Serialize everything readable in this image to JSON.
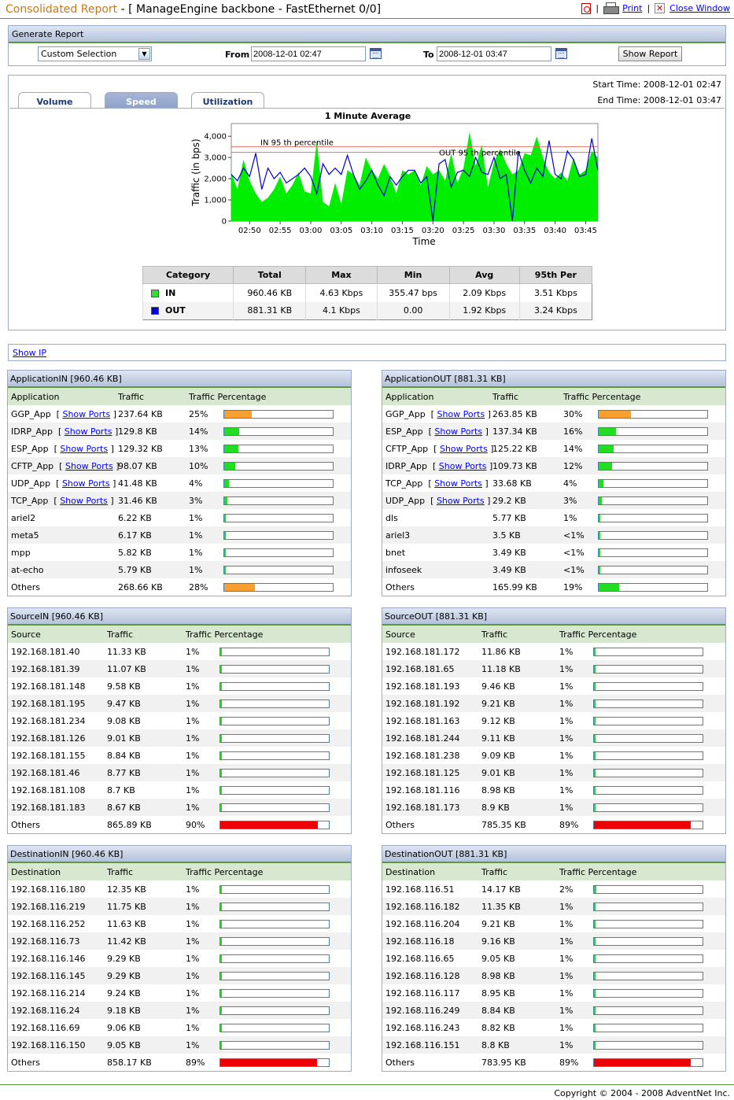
{
  "header": {
    "title_main": "Consolidated Report",
    "title_sub": " - [ ManageEngine backbone - FastEthernet 0/0]",
    "print_label": "Print",
    "close_label": "Close Window",
    "separator": "|"
  },
  "generate": {
    "title": "Generate Report",
    "selection": "Custom Selection",
    "from_label": "From",
    "from_value": "2008-12-01 02:47",
    "to_label": "To",
    "to_value": "2008-12-01 03:47",
    "button": "Show Report"
  },
  "tabs": [
    {
      "label": "Volume",
      "active": false
    },
    {
      "label": "Speed",
      "active": true
    },
    {
      "label": "Utilization",
      "active": false
    }
  ],
  "start_time": "Start Time: 2008-12-01 02:47",
  "end_time": "End Time: 2008-12-01 03:47",
  "chart_data": {
    "type": "area",
    "title": "1 Minute Average",
    "xlabel": "Time",
    "ylabel": "Traffic (in bps)",
    "ylim": [
      0,
      4600
    ],
    "yticks": [
      "0",
      "1,000",
      "2,000",
      "3,000",
      "4,000"
    ],
    "ytick_values": [
      0,
      1000,
      2000,
      3000,
      4000
    ],
    "xticks": [
      "02:50",
      "02:55",
      "03:00",
      "03:05",
      "03:10",
      "03:15",
      "03:20",
      "03:25",
      "03:30",
      "03:35",
      "03:40",
      "03:45"
    ],
    "x_start_minute": 47,
    "annotations": [
      {
        "text": "IN 95 th percentile",
        "value": 3510
      },
      {
        "text": "OUT 95 th percentile",
        "value": 3240
      }
    ],
    "series": [
      {
        "name": "IN",
        "color": "#00ee00",
        "values": [
          2300,
          1500,
          2900,
          1900,
          1300,
          900,
          1100,
          1500,
          2100,
          1300,
          1700,
          2300,
          1400,
          1300,
          3800,
          900,
          700,
          1800,
          800,
          2400,
          2200,
          1700,
          3000,
          2400,
          2000,
          2700,
          2100,
          1300,
          2400,
          2200,
          2400,
          1700,
          2600,
          2200,
          2400,
          1900,
          3200,
          1800,
          2500,
          4200,
          2600,
          3600,
          1600,
          2800,
          3400,
          2700,
          2200,
          2400,
          3200,
          3100,
          4000,
          3000,
          2300,
          2000,
          2300,
          1900,
          3000,
          2200,
          2400,
          3300,
          3000
        ]
      },
      {
        "name": "OUT",
        "color": "#0000cc",
        "values": [
          2200,
          1900,
          2500,
          2100,
          3200,
          1500,
          2500,
          2000,
          2300,
          1800,
          2000,
          2200,
          2500,
          2100,
          1300,
          2700,
          2200,
          2500,
          2200,
          3100,
          2200,
          1500,
          1900,
          2400,
          1700,
          1200,
          2100,
          1700,
          2100,
          2400,
          2400,
          1800,
          2100,
          0,
          2700,
          2900,
          1600,
          2300,
          2400,
          2100,
          3000,
          2300,
          2200,
          3000,
          2000,
          2200,
          0,
          3300,
          2400,
          1800,
          2500,
          2100,
          3800,
          2200,
          2000,
          3300,
          2900,
          2100,
          2200,
          3900,
          2400
        ]
      }
    ]
  },
  "stats": {
    "headers": [
      "Category",
      "Total",
      "Max",
      "Min",
      "Avg",
      "95th Per"
    ],
    "rows": [
      {
        "name": "IN",
        "color": "#33dd33",
        "total": "960.46 KB",
        "max": "4.63 Kbps",
        "min": "355.47 bps",
        "avg": "2.09 Kbps",
        "p95": "3.51 Kbps"
      },
      {
        "name": "OUT",
        "color": "#0000dd",
        "total": "881.31 KB",
        "max": "4.1 Kbps",
        "min": "0.00",
        "avg": "1.92 Kbps",
        "p95": "3.24 Kbps"
      }
    ]
  },
  "show_ip": "Show IP",
  "show_ports": "Show Ports",
  "bracket_open": "[",
  "bracket_close": "]",
  "panels": [
    {
      "title": "ApplicationIN [960.46 KB]",
      "cols": [
        "Application",
        "Traffic",
        "Traffic Percentage"
      ],
      "rows": [
        {
          "name": "GGP_App",
          "ports": true,
          "traffic": "237.64 KB",
          "pct": "25%",
          "frac": 0.25,
          "color": "#f7a030"
        },
        {
          "name": "IDRP_App",
          "ports": true,
          "traffic": "129.8 KB",
          "pct": "14%",
          "frac": 0.14,
          "color": "#22dd22"
        },
        {
          "name": "ESP_App",
          "ports": true,
          "traffic": "129.32 KB",
          "pct": "13%",
          "frac": 0.13,
          "color": "#22dd22"
        },
        {
          "name": "CFTP_App",
          "ports": true,
          "traffic": "98.07 KB",
          "pct": "10%",
          "frac": 0.1,
          "color": "#22dd22"
        },
        {
          "name": "UDP_App",
          "ports": true,
          "traffic": "41.48 KB",
          "pct": "4%",
          "frac": 0.04,
          "color": "#22dd22"
        },
        {
          "name": "TCP_App",
          "ports": true,
          "traffic": "31.46 KB",
          "pct": "3%",
          "frac": 0.03,
          "color": "#22dd22"
        },
        {
          "name": "ariel2",
          "ports": false,
          "traffic": "6.22 KB",
          "pct": "1%",
          "frac": 0.01,
          "color": "#22dd22"
        },
        {
          "name": "meta5",
          "ports": false,
          "traffic": "6.17 KB",
          "pct": "1%",
          "frac": 0.01,
          "color": "#22dd22"
        },
        {
          "name": "mpp",
          "ports": false,
          "traffic": "5.82 KB",
          "pct": "1%",
          "frac": 0.01,
          "color": "#22dd22"
        },
        {
          "name": "at-echo",
          "ports": false,
          "traffic": "5.79 KB",
          "pct": "1%",
          "frac": 0.01,
          "color": "#22dd22"
        },
        {
          "name": "Others",
          "ports": false,
          "traffic": "268.66 KB",
          "pct": "28%",
          "frac": 0.28,
          "color": "#f7a030"
        }
      ]
    },
    {
      "title": "ApplicationOUT [881.31 KB]",
      "cols": [
        "Application",
        "Traffic",
        "Traffic Percentage"
      ],
      "rows": [
        {
          "name": "GGP_App",
          "ports": true,
          "traffic": "263.85 KB",
          "pct": "30%",
          "frac": 0.3,
          "color": "#f7a030"
        },
        {
          "name": "ESP_App",
          "ports": true,
          "traffic": "137.34 KB",
          "pct": "16%",
          "frac": 0.16,
          "color": "#22dd22"
        },
        {
          "name": "CFTP_App",
          "ports": true,
          "traffic": "125.22 KB",
          "pct": "14%",
          "frac": 0.14,
          "color": "#22dd22"
        },
        {
          "name": "IDRP_App",
          "ports": true,
          "traffic": "109.73 KB",
          "pct": "12%",
          "frac": 0.12,
          "color": "#22dd22"
        },
        {
          "name": "TCP_App",
          "ports": true,
          "traffic": "33.68 KB",
          "pct": "4%",
          "frac": 0.04,
          "color": "#22dd22"
        },
        {
          "name": "UDP_App",
          "ports": true,
          "traffic": "29.2 KB",
          "pct": "3%",
          "frac": 0.03,
          "color": "#22dd22"
        },
        {
          "name": "dls",
          "ports": false,
          "traffic": "5.77 KB",
          "pct": "1%",
          "frac": 0.01,
          "color": "#22dd22"
        },
        {
          "name": "ariel3",
          "ports": false,
          "traffic": "3.5 KB",
          "pct": "<1%",
          "frac": 0.0,
          "color": "#22dd22"
        },
        {
          "name": "bnet",
          "ports": false,
          "traffic": "3.49 KB",
          "pct": "<1%",
          "frac": 0.0,
          "color": "#22dd22"
        },
        {
          "name": "infoseek",
          "ports": false,
          "traffic": "3.49 KB",
          "pct": "<1%",
          "frac": 0.0,
          "color": "#22dd22"
        },
        {
          "name": "Others",
          "ports": false,
          "traffic": "165.99 KB",
          "pct": "19%",
          "frac": 0.19,
          "color": "#22dd22"
        }
      ]
    },
    {
      "title": "SourceIN [960.46 KB]",
      "cols": [
        "Source",
        "Traffic",
        "Traffic Percentage"
      ],
      "rows": [
        {
          "name": "192.168.181.40",
          "traffic": "11.33 KB",
          "pct": "1%",
          "frac": 0.01,
          "color": "#22dd22"
        },
        {
          "name": "192.168.181.39",
          "traffic": "11.07 KB",
          "pct": "1%",
          "frac": 0.01,
          "color": "#22dd22"
        },
        {
          "name": "192.168.181.148",
          "traffic": "9.58 KB",
          "pct": "1%",
          "frac": 0.01,
          "color": "#22dd22"
        },
        {
          "name": "192.168.181.195",
          "traffic": "9.47 KB",
          "pct": "1%",
          "frac": 0.01,
          "color": "#22dd22"
        },
        {
          "name": "192.168.181.234",
          "traffic": "9.08 KB",
          "pct": "1%",
          "frac": 0.01,
          "color": "#22dd22"
        },
        {
          "name": "192.168.181.126",
          "traffic": "9.01 KB",
          "pct": "1%",
          "frac": 0.01,
          "color": "#22dd22"
        },
        {
          "name": "192.168.181.155",
          "traffic": "8.84 KB",
          "pct": "1%",
          "frac": 0.01,
          "color": "#22dd22"
        },
        {
          "name": "192.168.181.46",
          "traffic": "8.77 KB",
          "pct": "1%",
          "frac": 0.01,
          "color": "#22dd22"
        },
        {
          "name": "192.168.181.108",
          "traffic": "8.7 KB",
          "pct": "1%",
          "frac": 0.01,
          "color": "#22dd22"
        },
        {
          "name": "192.168.181.183",
          "traffic": "8.67 KB",
          "pct": "1%",
          "frac": 0.01,
          "color": "#22dd22"
        },
        {
          "name": "Others",
          "traffic": "865.89 KB",
          "pct": "90%",
          "frac": 0.9,
          "color": "#ee0000"
        }
      ]
    },
    {
      "title": "SourceOUT [881.31 KB]",
      "cols": [
        "Source",
        "Traffic",
        "Traffic Percentage"
      ],
      "rows": [
        {
          "name": "192.168.181.172",
          "traffic": "11.86 KB",
          "pct": "1%",
          "frac": 0.01,
          "color": "#22dd22"
        },
        {
          "name": "192.168.181.65",
          "traffic": "11.18 KB",
          "pct": "1%",
          "frac": 0.01,
          "color": "#22dd22"
        },
        {
          "name": "192.168.181.193",
          "traffic": "9.46 KB",
          "pct": "1%",
          "frac": 0.01,
          "color": "#22dd22"
        },
        {
          "name": "192.168.181.192",
          "traffic": "9.21 KB",
          "pct": "1%",
          "frac": 0.01,
          "color": "#22dd22"
        },
        {
          "name": "192.168.181.163",
          "traffic": "9.12 KB",
          "pct": "1%",
          "frac": 0.01,
          "color": "#22dd22"
        },
        {
          "name": "192.168.181.244",
          "traffic": "9.11 KB",
          "pct": "1%",
          "frac": 0.01,
          "color": "#22dd22"
        },
        {
          "name": "192.168.181.238",
          "traffic": "9.09 KB",
          "pct": "1%",
          "frac": 0.01,
          "color": "#22dd22"
        },
        {
          "name": "192.168.181.125",
          "traffic": "9.01 KB",
          "pct": "1%",
          "frac": 0.01,
          "color": "#22dd22"
        },
        {
          "name": "192.168.181.116",
          "traffic": "8.98 KB",
          "pct": "1%",
          "frac": 0.01,
          "color": "#22dd22"
        },
        {
          "name": "192.168.181.173",
          "traffic": "8.9 KB",
          "pct": "1%",
          "frac": 0.01,
          "color": "#22dd22"
        },
        {
          "name": "Others",
          "traffic": "785.35 KB",
          "pct": "89%",
          "frac": 0.89,
          "color": "#ee0000"
        }
      ]
    },
    {
      "title": "DestinationIN [960.46 KB]",
      "cols": [
        "Destination",
        "Traffic",
        "Traffic Percentage"
      ],
      "rows": [
        {
          "name": "192.168.116.180",
          "traffic": "12.35 KB",
          "pct": "1%",
          "frac": 0.01,
          "color": "#22dd22"
        },
        {
          "name": "192.168.116.219",
          "traffic": "11.75 KB",
          "pct": "1%",
          "frac": 0.01,
          "color": "#22dd22"
        },
        {
          "name": "192.168.116.252",
          "traffic": "11.63 KB",
          "pct": "1%",
          "frac": 0.01,
          "color": "#22dd22"
        },
        {
          "name": "192.168.116.73",
          "traffic": "11.42 KB",
          "pct": "1%",
          "frac": 0.01,
          "color": "#22dd22"
        },
        {
          "name": "192.168.116.146",
          "traffic": "9.29 KB",
          "pct": "1%",
          "frac": 0.01,
          "color": "#22dd22"
        },
        {
          "name": "192.168.116.145",
          "traffic": "9.29 KB",
          "pct": "1%",
          "frac": 0.01,
          "color": "#22dd22"
        },
        {
          "name": "192.168.116.214",
          "traffic": "9.24 KB",
          "pct": "1%",
          "frac": 0.01,
          "color": "#22dd22"
        },
        {
          "name": "192.168.116.24",
          "traffic": "9.18 KB",
          "pct": "1%",
          "frac": 0.01,
          "color": "#22dd22"
        },
        {
          "name": "192.168.116.69",
          "traffic": "9.06 KB",
          "pct": "1%",
          "frac": 0.01,
          "color": "#22dd22"
        },
        {
          "name": "192.168.116.150",
          "traffic": "9.05 KB",
          "pct": "1%",
          "frac": 0.01,
          "color": "#22dd22"
        },
        {
          "name": "Others",
          "traffic": "858.17 KB",
          "pct": "89%",
          "frac": 0.89,
          "color": "#ee0000"
        }
      ]
    },
    {
      "title": "DestinationOUT [881.31 KB]",
      "cols": [
        "Destination",
        "Traffic",
        "Traffic Percentage"
      ],
      "rows": [
        {
          "name": "192.168.116.51",
          "traffic": "14.17 KB",
          "pct": "2%",
          "frac": 0.02,
          "color": "#22dd22"
        },
        {
          "name": "192.168.116.182",
          "traffic": "11.35 KB",
          "pct": "1%",
          "frac": 0.01,
          "color": "#22dd22"
        },
        {
          "name": "192.168.116.204",
          "traffic": "9.21 KB",
          "pct": "1%",
          "frac": 0.01,
          "color": "#22dd22"
        },
        {
          "name": "192.168.116.18",
          "traffic": "9.16 KB",
          "pct": "1%",
          "frac": 0.01,
          "color": "#22dd22"
        },
        {
          "name": "192.168.116.65",
          "traffic": "9.05 KB",
          "pct": "1%",
          "frac": 0.01,
          "color": "#22dd22"
        },
        {
          "name": "192.168.116.128",
          "traffic": "8.98 KB",
          "pct": "1%",
          "frac": 0.01,
          "color": "#22dd22"
        },
        {
          "name": "192.168.116.117",
          "traffic": "8.95 KB",
          "pct": "1%",
          "frac": 0.01,
          "color": "#22dd22"
        },
        {
          "name": "192.168.116.249",
          "traffic": "8.84 KB",
          "pct": "1%",
          "frac": 0.01,
          "color": "#22dd22"
        },
        {
          "name": "192.168.116.243",
          "traffic": "8.82 KB",
          "pct": "1%",
          "frac": 0.01,
          "color": "#22dd22"
        },
        {
          "name": "192.168.116.151",
          "traffic": "8.8 KB",
          "pct": "1%",
          "frac": 0.01,
          "color": "#22dd22"
        },
        {
          "name": "Others",
          "traffic": "783.95 KB",
          "pct": "89%",
          "frac": 0.89,
          "color": "#ee0000"
        }
      ]
    }
  ],
  "footer": "Copyright © 2004 - 2008 AdventNet Inc."
}
